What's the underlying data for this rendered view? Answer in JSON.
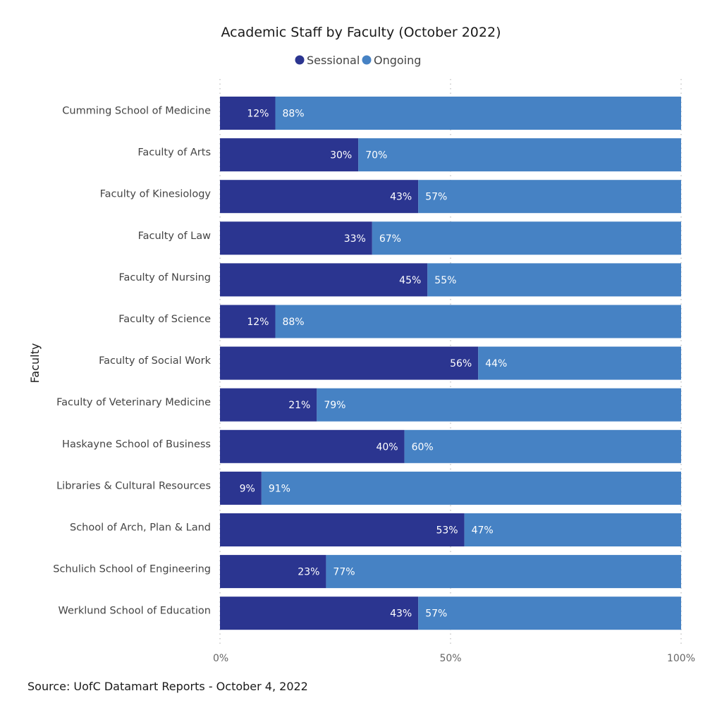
{
  "chart_data": {
    "type": "bar",
    "orientation": "horizontal",
    "stacked": "100%",
    "title": "Academic Staff by Faculty (October 2022)",
    "ylabel": "Faculty",
    "xlabel": "",
    "xlim": [
      0,
      100
    ],
    "xticks": [
      "0%",
      "50%",
      "100%"
    ],
    "legend": {
      "placement": "top-center",
      "entries": [
        "Sessional",
        "Ongoing"
      ]
    },
    "categories": [
      "Cumming School of Medicine",
      "Faculty of Arts",
      "Faculty of Kinesiology",
      "Faculty of Law",
      "Faculty of Nursing",
      "Faculty of Science",
      "Faculty of Social Work",
      "Faculty of Veterinary Medicine",
      "Haskayne School of Business",
      "Libraries & Cultural Resources",
      "School of Arch, Plan & Land",
      "Schulich School of Engineering",
      "Werklund School of Education"
    ],
    "series": [
      {
        "name": "Sessional",
        "color": "#2b3590",
        "values": [
          12,
          30,
          43,
          33,
          45,
          12,
          56,
          21,
          40,
          9,
          53,
          23,
          43
        ],
        "labels": [
          "12%",
          "30%",
          "43%",
          "33%",
          "45%",
          "12%",
          "56%",
          "21%",
          "40%",
          "9%",
          "53%",
          "23%",
          "43%"
        ]
      },
      {
        "name": "Ongoing",
        "color": "#4682c4",
        "values": [
          88,
          70,
          57,
          67,
          55,
          88,
          44,
          79,
          60,
          91,
          47,
          77,
          57
        ],
        "labels": [
          "88%",
          "70%",
          "57%",
          "67%",
          "55%",
          "88%",
          "44%",
          "79%",
          "60%",
          "91%",
          "47%",
          "77%",
          "57%"
        ]
      }
    ]
  },
  "footer": {
    "source": "Source: UofC Datamart Reports - October 4, 2022"
  }
}
